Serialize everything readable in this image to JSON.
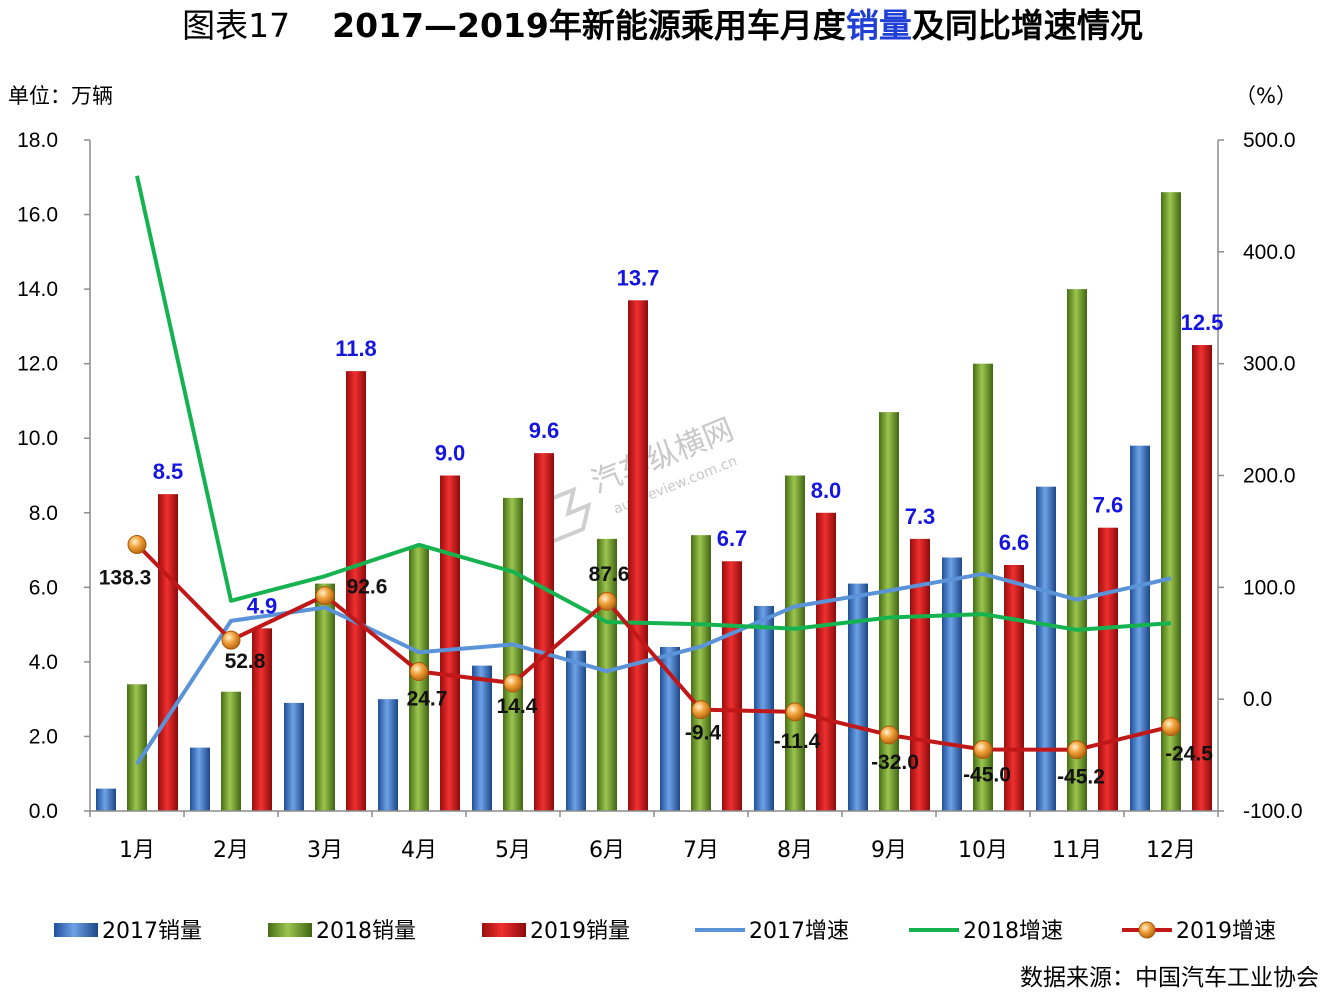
{
  "title": {
    "prefix": "图表17",
    "main_a": "2017—2019年新能源乘用车月度",
    "highlight": "销量",
    "main_b": "及同比增速情况"
  },
  "unit_left": "单位：万辆",
  "unit_right": "（%）",
  "source": "数据来源：中国汽车工业协会",
  "watermark": {
    "name": "汽车纵横网",
    "url": "autoreview.com.cn"
  },
  "colors": {
    "bar2017": "#3e75c4",
    "bar2018": "#6e9a2c",
    "bar2019": "#cf1b1b",
    "line2017": "#5b93d8",
    "line2018": "#15b350",
    "line2019": "#c01818",
    "marker2019": "#e58a1e",
    "bar_label": "#1515e0"
  },
  "chart_data": {
    "type": "bar",
    "categories": [
      "1月",
      "2月",
      "3月",
      "4月",
      "5月",
      "6月",
      "7月",
      "8月",
      "9月",
      "10月",
      "11月",
      "12月"
    ],
    "left_axis": {
      "min": 0,
      "max": 18,
      "step": 2,
      "ticks": [
        "0.0",
        "2.0",
        "4.0",
        "6.0",
        "8.0",
        "10.0",
        "12.0",
        "14.0",
        "16.0",
        "18.0"
      ]
    },
    "right_axis": {
      "min": -100,
      "max": 500,
      "step": 100,
      "ticks": [
        "-100.0",
        "0.0",
        "100.0",
        "200.0",
        "300.0",
        "400.0",
        "500.0"
      ]
    },
    "bar_series": [
      {
        "name": "2017销量",
        "values": [
          0.6,
          1.7,
          2.9,
          3.0,
          3.9,
          4.3,
          4.4,
          5.5,
          6.1,
          6.8,
          8.7,
          9.8
        ]
      },
      {
        "name": "2018销量",
        "values": [
          3.4,
          3.2,
          6.1,
          7.1,
          8.4,
          7.3,
          7.4,
          9.0,
          10.7,
          12.0,
          14.0,
          16.6
        ]
      },
      {
        "name": "2019销量",
        "values": [
          8.5,
          4.9,
          11.8,
          9.0,
          9.6,
          13.7,
          6.7,
          8.0,
          7.3,
          6.6,
          7.6,
          12.5
        ],
        "labels": [
          "8.5",
          "4.9",
          "11.8",
          "9.0",
          "9.6",
          "13.7",
          "6.7",
          "8.0",
          "7.3",
          "6.6",
          "7.6",
          "12.5"
        ]
      }
    ],
    "line_series": [
      {
        "name": "2017增速",
        "values": [
          -58,
          70,
          82,
          42,
          49,
          25,
          47,
          83,
          97,
          112,
          89,
          108
        ]
      },
      {
        "name": "2018增速",
        "values": [
          468,
          88,
          110,
          138,
          114,
          69,
          67,
          63,
          73,
          76,
          62,
          68
        ]
      },
      {
        "name": "2019增速",
        "values": [
          138.3,
          52.8,
          92.6,
          24.7,
          14.4,
          87.6,
          -9.4,
          -11.4,
          -32.0,
          -45.0,
          -45.2,
          -24.5
        ],
        "labels": [
          "138.3",
          "52.8",
          "92.6",
          "24.7",
          "14.4",
          "87.6",
          "-9.4",
          "-11.4",
          "-32.0",
          "-45.0",
          "-45.2",
          "-24.5"
        ]
      }
    ],
    "legend_position": "bottom",
    "grid": false
  }
}
